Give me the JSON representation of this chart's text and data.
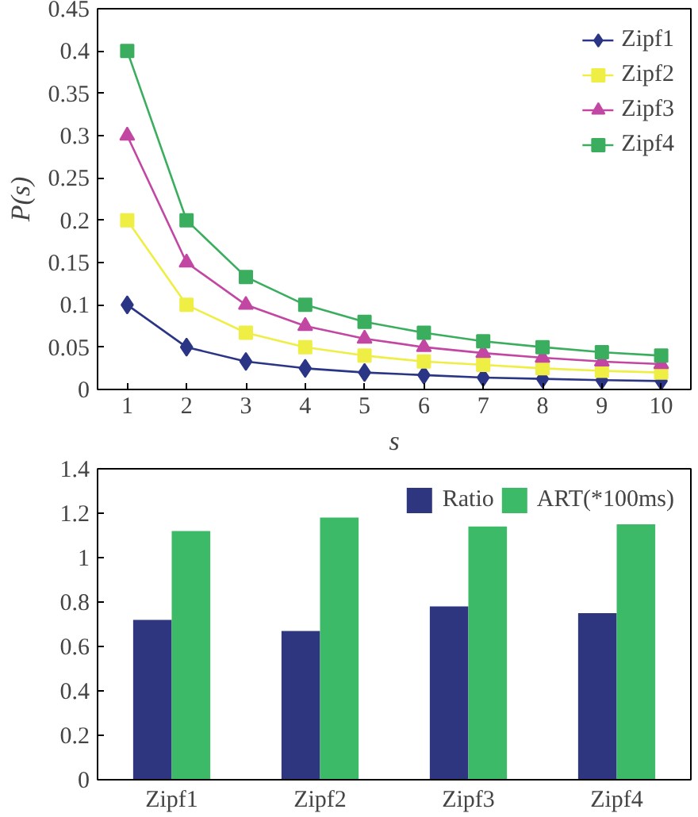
{
  "chart_data": [
    {
      "type": "line",
      "xlabel": "s",
      "ylabel": "P(s)",
      "x": [
        1,
        2,
        3,
        4,
        5,
        6,
        7,
        8,
        9,
        10
      ],
      "xlim": [
        0.5,
        10.5
      ],
      "xticks": [
        1,
        2,
        3,
        4,
        5,
        6,
        7,
        8,
        9,
        10
      ],
      "ylim": [
        0,
        0.45
      ],
      "yticks": [
        0,
        0.05,
        0.1,
        0.15,
        0.2,
        0.25,
        0.3,
        0.35,
        0.4,
        0.45
      ],
      "grid": false,
      "legend": "top right",
      "series": [
        {
          "name": "Zipf1",
          "color": "#2b3585",
          "marker": "diamond",
          "values": [
            0.1,
            0.05,
            0.033,
            0.025,
            0.02,
            0.017,
            0.014,
            0.0125,
            0.011,
            0.01
          ]
        },
        {
          "name": "Zipf2",
          "color": "#eeee44",
          "marker": "square",
          "values": [
            0.2,
            0.1,
            0.067,
            0.05,
            0.04,
            0.033,
            0.029,
            0.025,
            0.022,
            0.02
          ]
        },
        {
          "name": "Zipf3",
          "color": "#c247a3",
          "marker": "triangle",
          "values": [
            0.3,
            0.15,
            0.1,
            0.075,
            0.06,
            0.05,
            0.043,
            0.0375,
            0.033,
            0.03
          ]
        },
        {
          "name": "Zipf4",
          "color": "#3aae5e",
          "marker": "square",
          "values": [
            0.4,
            0.2,
            0.133,
            0.1,
            0.08,
            0.067,
            0.057,
            0.05,
            0.044,
            0.04
          ]
        }
      ]
    },
    {
      "type": "bar",
      "categories": [
        "Zipf1",
        "Zipf2",
        "Zipf3",
        "Zipf4"
      ],
      "ylim": [
        0,
        1.4
      ],
      "yticks": [
        0,
        0.2,
        0.4,
        0.6,
        0.8,
        1,
        1.2,
        1.4
      ],
      "grid": false,
      "legend": "top right",
      "series": [
        {
          "name": "Ratio",
          "color": "#2e3680",
          "values": [
            0.72,
            0.67,
            0.78,
            0.75
          ]
        },
        {
          "name": "ART(*100ms)",
          "color": "#3dba68",
          "values": [
            1.12,
            1.18,
            1.14,
            1.15
          ]
        }
      ]
    }
  ]
}
